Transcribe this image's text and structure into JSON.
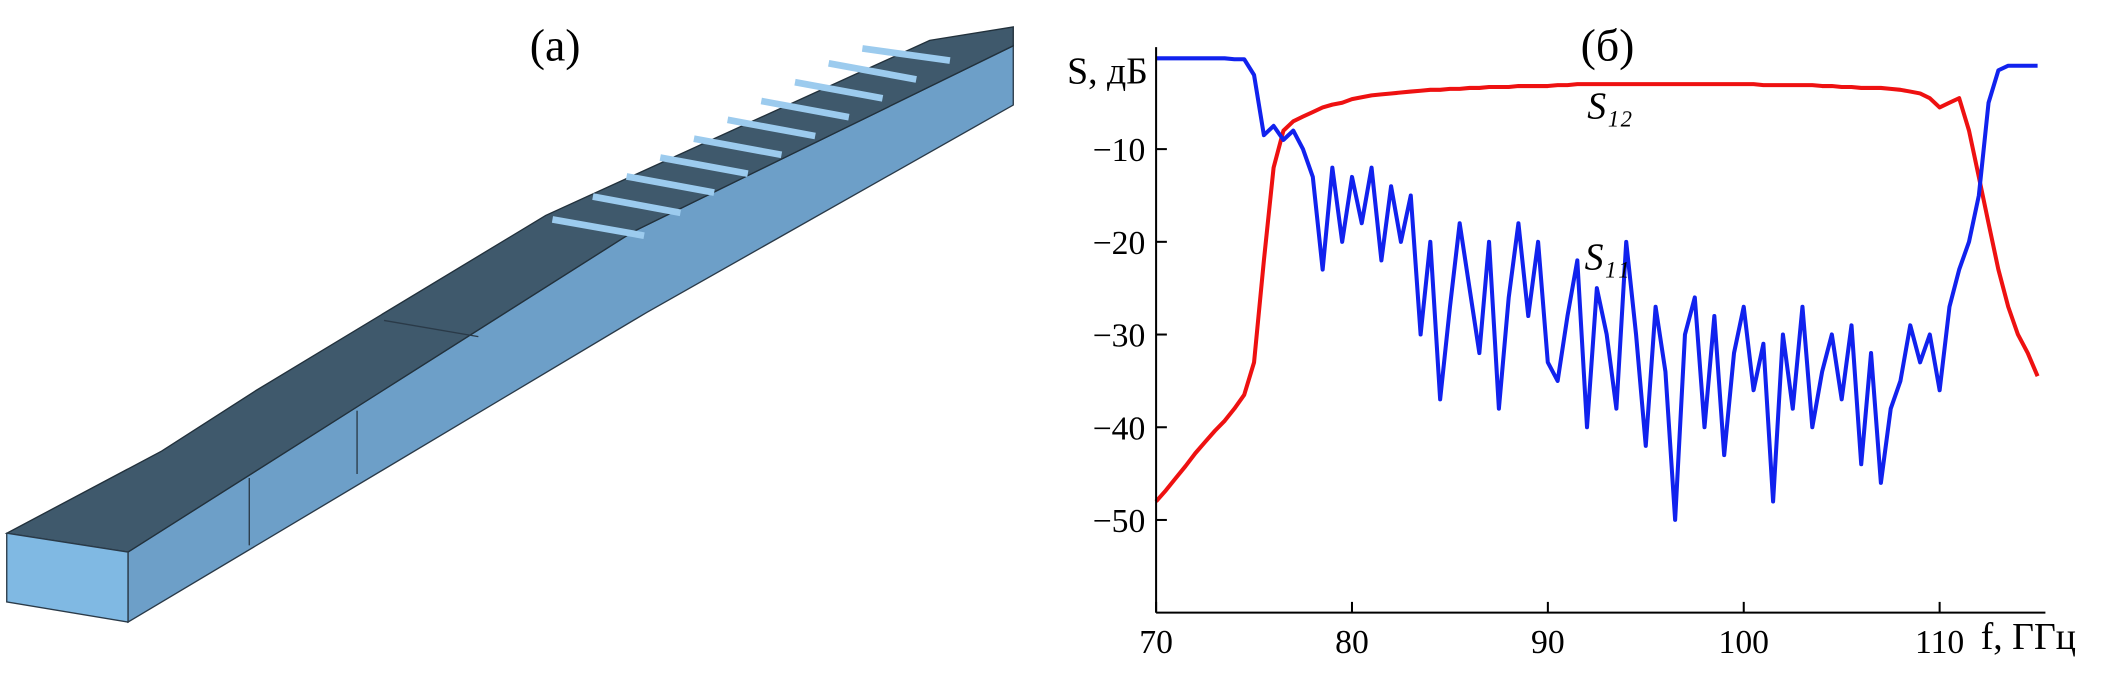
{
  "panel_a": {
    "label": "(a)"
  },
  "chart_data": {
    "type": "line",
    "title": "(б)",
    "x_label": "f, ГГц",
    "y_label": "S, дБ",
    "x": [
      70,
      70.5,
      71,
      71.5,
      72,
      72.5,
      73,
      73.5,
      74,
      74.5,
      75,
      75.5,
      76,
      76.5,
      77,
      77.5,
      78,
      78.5,
      79,
      79.5,
      80,
      80.5,
      81,
      81.5,
      82,
      82.5,
      83,
      83.5,
      84,
      84.5,
      85,
      85.5,
      86,
      86.5,
      87,
      87.5,
      88,
      88.5,
      89,
      89.5,
      90,
      90.5,
      91,
      91.5,
      92,
      92.5,
      93,
      93.5,
      94,
      94.5,
      95,
      95.5,
      96,
      96.5,
      97,
      97.5,
      98,
      98.5,
      99,
      99.5,
      100,
      100.5,
      101,
      101.5,
      102,
      102.5,
      103,
      103.5,
      104,
      104.5,
      105,
      105.5,
      106,
      106.5,
      107,
      107.5,
      108,
      108.5,
      109,
      109.5,
      110,
      110.5,
      111,
      111.5,
      112,
      112.5,
      113,
      113.5,
      114,
      114.5,
      115
    ],
    "series": [
      {
        "name": "S₁₂",
        "color": "#ee1111",
        "values": [
          -48,
          -46.8,
          -45.5,
          -44.2,
          -42.8,
          -41.6,
          -40.4,
          -39.3,
          -38,
          -36.5,
          -33,
          -22,
          -12,
          -8,
          -7,
          -6.5,
          -6,
          -5.5,
          -5.2,
          -5,
          -4.6,
          -4.4,
          -4.2,
          -4.1,
          -4,
          -3.9,
          -3.8,
          -3.7,
          -3.6,
          -3.6,
          -3.5,
          -3.5,
          -3.4,
          -3.4,
          -3.3,
          -3.3,
          -3.3,
          -3.2,
          -3.2,
          -3.2,
          -3.2,
          -3.1,
          -3.1,
          -3,
          -3,
          -3,
          -3,
          -3,
          -3,
          -3,
          -3,
          -3,
          -3,
          -3,
          -3,
          -3,
          -3,
          -3,
          -3,
          -3,
          -3,
          -3,
          -3.1,
          -3.1,
          -3.1,
          -3.1,
          -3.1,
          -3.1,
          -3.2,
          -3.2,
          -3.3,
          -3.3,
          -3.4,
          -3.4,
          -3.4,
          -3.5,
          -3.6,
          -3.8,
          -4,
          -4.5,
          -5.5,
          -5,
          -4.5,
          -8,
          -13,
          -18,
          -23,
          -27,
          -30,
          -32,
          -34.5
        ]
      },
      {
        "name": "S₁₁",
        "color": "#1122ee",
        "values": [
          -0.2,
          -0.2,
          -0.2,
          -0.2,
          -0.2,
          -0.2,
          -0.2,
          -0.2,
          -0.3,
          -0.3,
          -2,
          -8.5,
          -7.5,
          -9,
          -8,
          -10,
          -13,
          -23,
          -12,
          -20,
          -13,
          -18,
          -12,
          -22,
          -14,
          -20,
          -15,
          -30,
          -20,
          -37,
          -27,
          -18,
          -25,
          -32,
          -20,
          -38,
          -26,
          -18,
          -28,
          -20,
          -33,
          -35,
          -28,
          -22,
          -40,
          -25,
          -30,
          -38,
          -20,
          -30,
          -42,
          -27,
          -34,
          -50,
          -30,
          -26,
          -40,
          -28,
          -43,
          -32,
          -27,
          -36,
          -31,
          -48,
          -30,
          -38,
          -27,
          -40,
          -34,
          -30,
          -37,
          -29,
          -44,
          -32,
          -46,
          -38,
          -35,
          -29,
          -33,
          -30,
          -36,
          -27,
          -23,
          -20,
          -15,
          -5,
          -1.5,
          -1,
          -1,
          -1,
          -1
        ]
      }
    ],
    "xlim": [
      70,
      115.4
    ],
    "ylim": [
      -60,
      1
    ],
    "xticks": [
      70,
      80,
      90,
      100,
      110
    ],
    "yticks": [
      {
        "value": -10,
        "label": "−10"
      },
      {
        "value": -20,
        "label": "−20"
      },
      {
        "value": -30,
        "label": "−30"
      },
      {
        "value": -40,
        "label": "−40"
      },
      {
        "value": -50,
        "label": "−50"
      }
    ]
  }
}
